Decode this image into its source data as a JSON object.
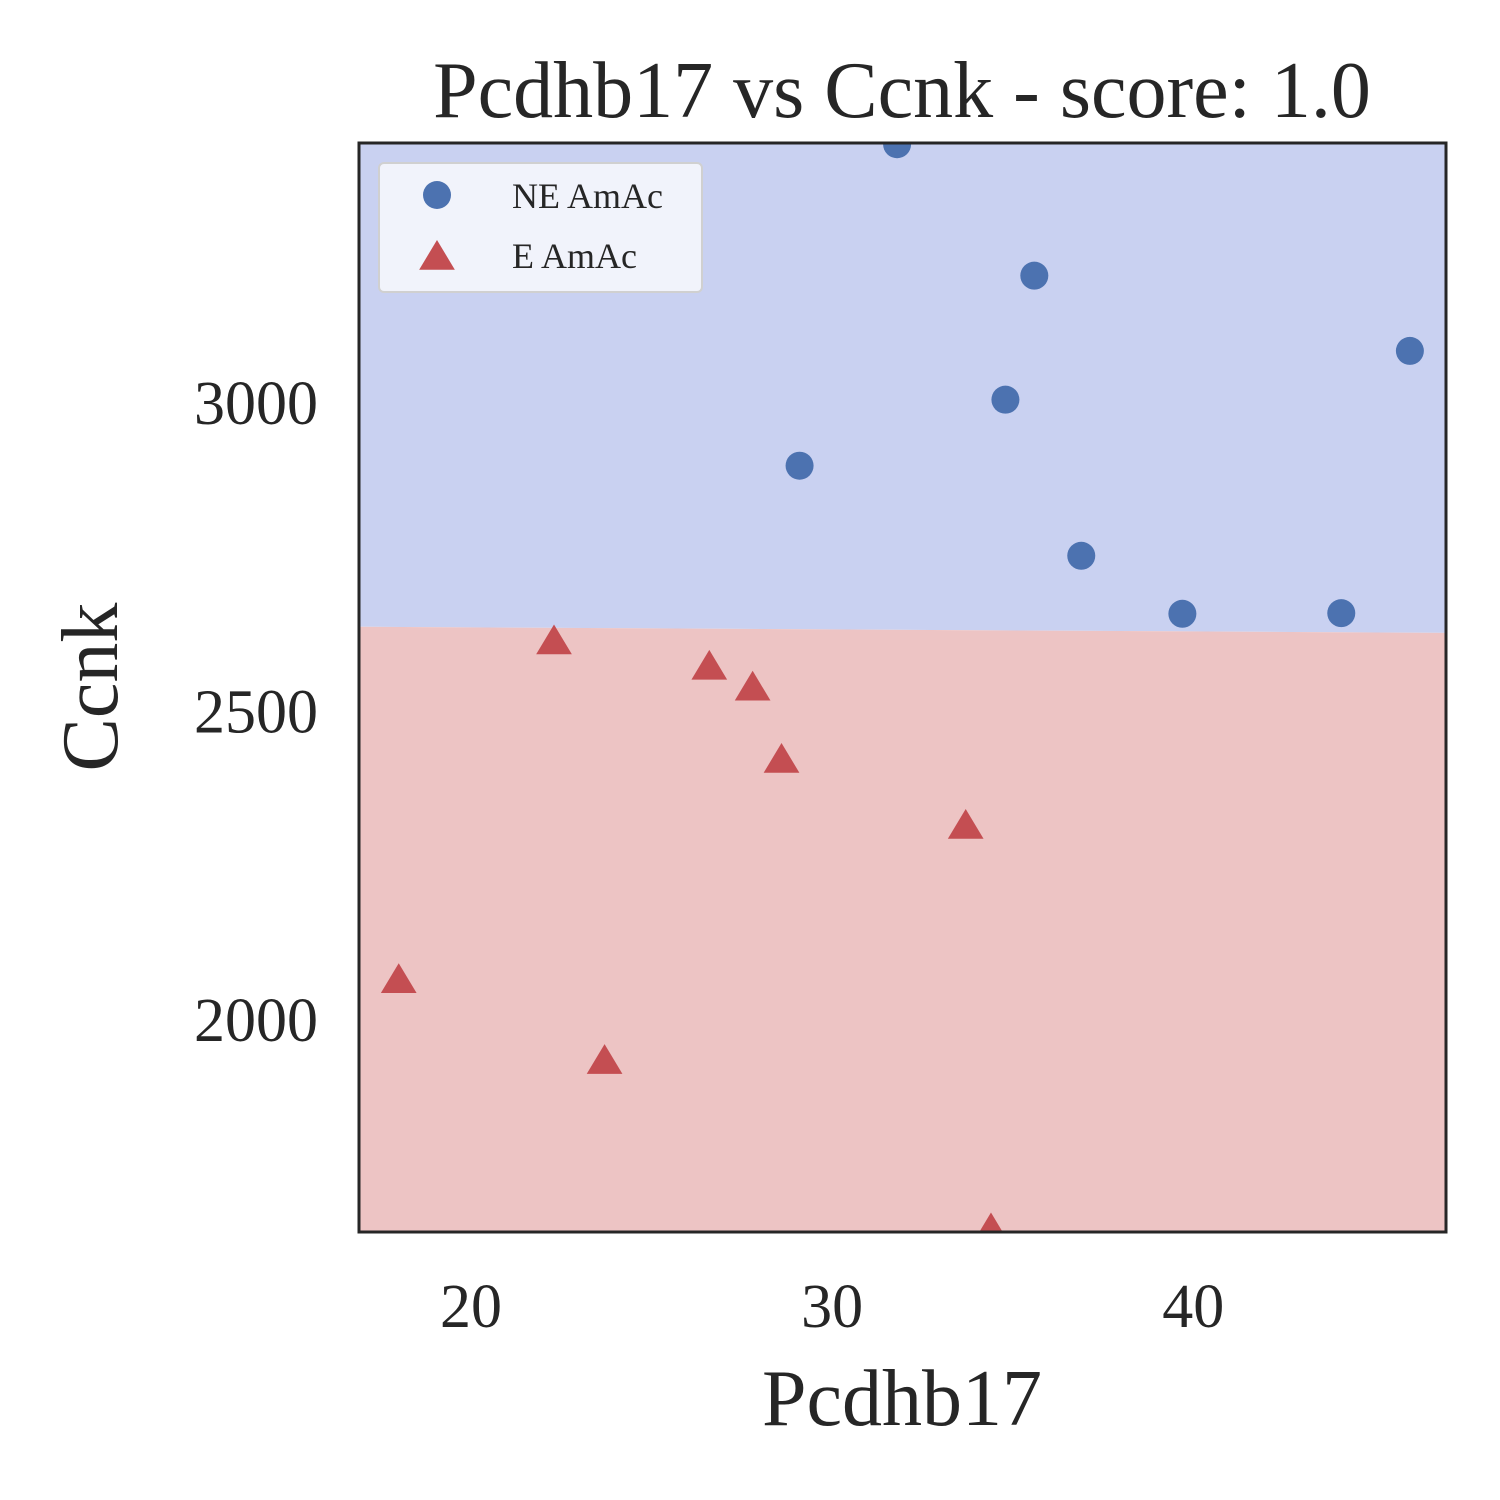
{
  "chart_data": {
    "type": "scatter",
    "title": "Pcdhb17 vs Ccnk - score: 1.0",
    "xlabel": "Pcdhb17",
    "ylabel": "Ccnk",
    "xlim": [
      16.9,
      47.0
    ],
    "ylim": [
      1655,
      3420
    ],
    "xticks": [
      {
        "value": 20,
        "label": "20"
      },
      {
        "value": 30,
        "label": "30"
      },
      {
        "value": 40,
        "label": "40"
      }
    ],
    "yticks": [
      {
        "value": 2000,
        "label": "2000"
      },
      {
        "value": 2500,
        "label": "2500"
      },
      {
        "value": 3000,
        "label": "3000"
      }
    ],
    "grid": false,
    "legend_position": "top-left",
    "decision_boundary": {
      "y_at_xmin": 2636,
      "y_at_xmax": 2626,
      "upper_region_color": "#c9d1f1",
      "lower_region_color": "#edc4c4"
    },
    "series": [
      {
        "name": "NE AmAc",
        "marker": "circle",
        "color": "#4c72b0",
        "points": [
          {
            "x": 31.8,
            "y": 3418
          },
          {
            "x": 35.6,
            "y": 3205
          },
          {
            "x": 46.0,
            "y": 3083
          },
          {
            "x": 34.8,
            "y": 3004
          },
          {
            "x": 29.1,
            "y": 2897
          },
          {
            "x": 36.9,
            "y": 2751
          },
          {
            "x": 39.7,
            "y": 2657
          },
          {
            "x": 44.1,
            "y": 2658
          }
        ]
      },
      {
        "name": "E AmAc",
        "marker": "triangle",
        "color": "#c44e52",
        "points": [
          {
            "x": 22.3,
            "y": 2612
          },
          {
            "x": 26.6,
            "y": 2571
          },
          {
            "x": 27.8,
            "y": 2537
          },
          {
            "x": 28.6,
            "y": 2420
          },
          {
            "x": 33.7,
            "y": 2313
          },
          {
            "x": 18.0,
            "y": 2063
          },
          {
            "x": 23.7,
            "y": 1932
          },
          {
            "x": 34.4,
            "y": 1659
          }
        ]
      }
    ]
  }
}
